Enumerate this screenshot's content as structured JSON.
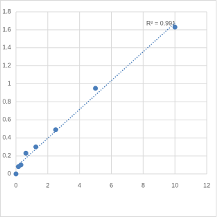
{
  "chart_data": {
    "type": "scatter",
    "series": [
      {
        "color": "#4a7ebb",
        "x": [
          0,
          0.156,
          0.3125,
          0.625,
          1.25,
          2.5,
          5,
          10
        ],
        "values": [
          0,
          0.08,
          0.1,
          0.23,
          0.3,
          0.49,
          0.95,
          1.63
        ]
      }
    ],
    "annotation": "R² = 0.991",
    "trendline": true,
    "xlim": [
      0,
      12
    ],
    "xticks": [
      0,
      2,
      4,
      6,
      8,
      10,
      12
    ],
    "ylim": [
      0,
      1.8
    ],
    "yticks": [
      0,
      0.2,
      0.4,
      0.6,
      0.8,
      1,
      1.2,
      1.4,
      1.6,
      1.8
    ],
    "grid": true
  }
}
